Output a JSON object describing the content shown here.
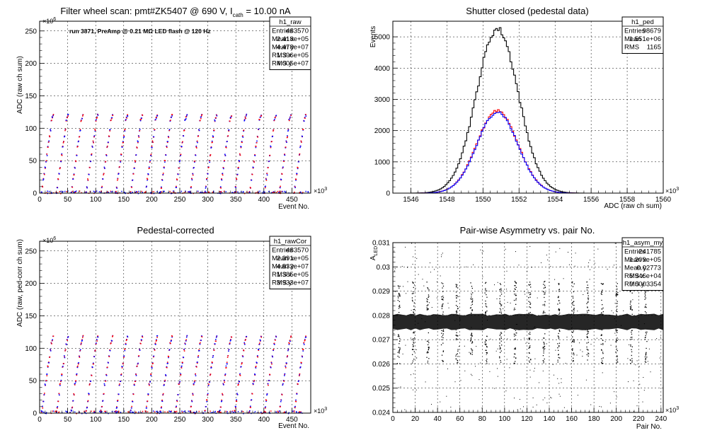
{
  "chart_data": [
    {
      "type": "scatter",
      "title": "Filter wheel scan: pmt#ZK5407 @   690 V, I",
      "title_sub": "cath",
      "title_tail": " = 10.00 nA",
      "annotation": "run 3871, PreAmp @ 0.21 MΩ LED flash @  120 Hz",
      "xlabel": "Event No.",
      "ylabel": "ADC (raw ch sum)",
      "x_multiplier": "×10",
      "x_multiplier_exp": "3",
      "y_multiplier": "×10",
      "y_multiplier_exp": "6",
      "xlim": [
        0,
        483.6
      ],
      "ylim": [
        0,
        265
      ],
      "x_ticks": [
        0,
        50,
        100,
        150,
        200,
        250,
        300,
        350,
        400,
        450
      ],
      "y_ticks": [
        0,
        50,
        100,
        150,
        200,
        250
      ],
      "grid": true,
      "stats": {
        "name": "h1_raw",
        "rows": [
          {
            "label": "Entries",
            "value": "483570"
          },
          {
            "label": "Mean x",
            "value": "2.418e+05"
          },
          {
            "label": "Mean y",
            "value": "4.478e+07"
          },
          {
            "label": "RMS x",
            "value": "1.396e+05"
          },
          {
            "label": "RMS y",
            "value": "4.005e+07"
          }
        ]
      },
      "levels": [
        2,
        10,
        22,
        30,
        40,
        50,
        60,
        72,
        80,
        88,
        98,
        113,
        117,
        121
      ],
      "period": 26.5,
      "colors": {
        "red": "#ff0000",
        "blue": "#0000ff"
      }
    },
    {
      "type": "line",
      "title": "Shutter closed (pedestal data)",
      "xlabel": "ADC (raw ch sum)",
      "ylabel": "Events",
      "x_multiplier": "×10",
      "x_multiplier_exp": "3",
      "xlim": [
        1545,
        1560
      ],
      "ylim": [
        0,
        5500
      ],
      "x_ticks": [
        1546,
        1548,
        1550,
        1552,
        1554,
        1556,
        1558,
        1560
      ],
      "y_ticks": [
        0,
        1000,
        2000,
        3000,
        4000,
        5000
      ],
      "grid": true,
      "stats": {
        "name": "h1_ped",
        "rows": [
          {
            "label": "Entries",
            "value": "98679"
          },
          {
            "label": "Mean",
            "value": "1.551e+06"
          },
          {
            "label": "RMS",
            "value": "1165"
          }
        ]
      },
      "series": [
        {
          "color": "#000000",
          "mean": 1550.8,
          "sigma": 1.165,
          "peak": 5250
        },
        {
          "color": "#ff0000",
          "mean": 1550.8,
          "sigma": 1.12,
          "peak": 2650
        },
        {
          "color": "#0000ff",
          "mean": 1550.8,
          "sigma": 1.12,
          "peak": 2600
        }
      ]
    },
    {
      "type": "scatter",
      "title": "Pedestal-corrected",
      "xlabel": "Event No.",
      "ylabel": "ADC (raw, ped-corr ch sum)",
      "x_multiplier": "×10",
      "x_multiplier_exp": "3",
      "y_multiplier": "×10",
      "y_multiplier_exp": "6",
      "xlim": [
        0,
        483.6
      ],
      "ylim": [
        0,
        265
      ],
      "x_ticks": [
        0,
        50,
        100,
        150,
        200,
        250,
        300,
        350,
        400,
        450
      ],
      "y_ticks": [
        0,
        50,
        100,
        150,
        200,
        250
      ],
      "grid": true,
      "stats": {
        "name": "h1_rawCor",
        "rows": [
          {
            "label": "Entries",
            "value": "483570"
          },
          {
            "label": "Mean x",
            "value": "2.391e+05"
          },
          {
            "label": "Mean y",
            "value": "4.832e+07"
          },
          {
            "label": "RMS x",
            "value": "1.385e+05"
          },
          {
            "label": "RMS y",
            "value": "3.933e+07"
          }
        ]
      },
      "levels": [
        4,
        10,
        20,
        30,
        45,
        50,
        60,
        72,
        78,
        88,
        98,
        108,
        113,
        119
      ],
      "period": 26.5,
      "colors": {
        "red": "#ff0000",
        "blue": "#0000ff"
      }
    },
    {
      "type": "scatter",
      "title": "Pair-wise Asymmetry vs. pair No.",
      "xlabel": "Pair No.",
      "ylabel": "A",
      "ylabel_sub": "LED",
      "x_multiplier": "×10",
      "x_multiplier_exp": "3",
      "xlim": [
        0,
        242
      ],
      "ylim": [
        0.024,
        0.031
      ],
      "x_ticks": [
        0,
        20,
        40,
        60,
        80,
        100,
        120,
        140,
        160,
        180,
        200,
        220,
        240
      ],
      "y_ticks": [
        0.024,
        0.025,
        0.026,
        0.027,
        0.028,
        0.029,
        0.03,
        0.031
      ],
      "grid": true,
      "stats": {
        "name": "h1_asym_my",
        "rows": [
          {
            "label": "Entries",
            "value": "241785"
          },
          {
            "label": "Mean x",
            "value": "1.209e+05"
          },
          {
            "label": "Mean y",
            "value": "0.02773"
          },
          {
            "label": "RMS x",
            "value": "6.946e+04"
          },
          {
            "label": "RMS y",
            "value": "0.0003354"
          }
        ]
      },
      "band_center": 0.02773,
      "band_halfwidth": 0.0003,
      "spikes_x": [
        5,
        18,
        31,
        44,
        57,
        70,
        83,
        96,
        109,
        122,
        135,
        148,
        161,
        174,
        187,
        200,
        213,
        226
      ]
    }
  ]
}
